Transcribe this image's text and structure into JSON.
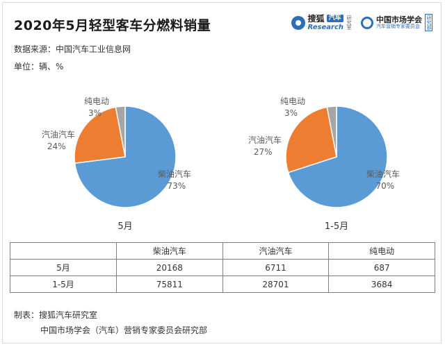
{
  "header": {
    "title": "2020年5月轻型客车分燃料销量",
    "source": "数据来源：中国汽车工业信息网",
    "unit": "单位：辆、%"
  },
  "logos": {
    "sohu_name": "搜狐",
    "sohu_tag": "汽车",
    "sohu_sub": "Research",
    "sohu_side": "研究室",
    "cma_name": "中国市场学会",
    "cma_sub": "汽车营销专家委员会",
    "cma_badge": "研究部"
  },
  "colors": {
    "diesel": "#5b9bd5",
    "gasoline": "#ed7d31",
    "electric": "#a5a5a5"
  },
  "chart_data": [
    {
      "type": "pie",
      "caption": "5月",
      "slices": [
        {
          "label": "柴油汽车",
          "value": 73,
          "pct_label": "73%"
        },
        {
          "label": "汽油汽车",
          "value": 24,
          "pct_label": "24%"
        },
        {
          "label": "纯电动",
          "value": 3,
          "pct_label": "3%"
        }
      ]
    },
    {
      "type": "pie",
      "caption": "1-5月",
      "slices": [
        {
          "label": "柴油汽车",
          "value": 70,
          "pct_label": "70%"
        },
        {
          "label": "汽油汽车",
          "value": 27,
          "pct_label": "27%"
        },
        {
          "label": "纯电动",
          "value": 3,
          "pct_label": "3%"
        }
      ]
    }
  ],
  "table": {
    "headers": [
      "",
      "柴油汽车",
      "汽油汽车",
      "纯电动"
    ],
    "rows": [
      [
        "5月",
        "20168",
        "6711",
        "687"
      ],
      [
        "1-5月",
        "75811",
        "28701",
        "3684"
      ]
    ]
  },
  "footer": {
    "made_by": "制表：搜狐汽车研究室",
    "org": "中国市场学会（汽车）营销专家委员会研究部"
  }
}
